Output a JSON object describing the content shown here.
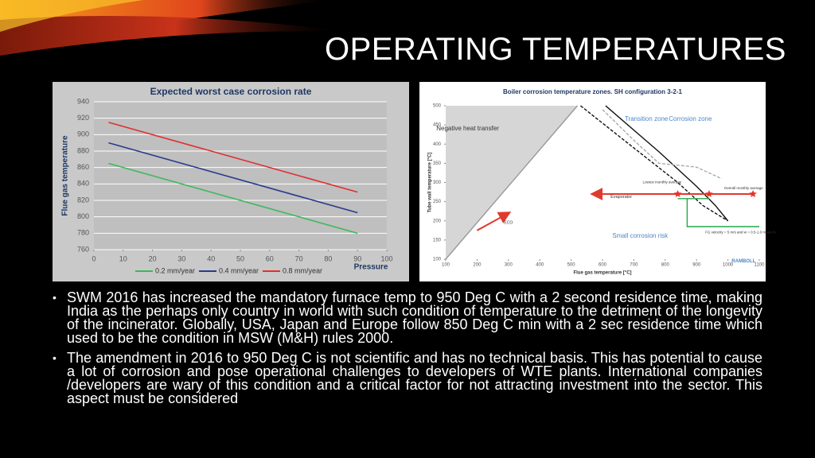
{
  "slide": {
    "title": "OPERATING TEMPERATURES",
    "bullets": [
      "SWM 2016 has increased the mandatory furnace temp to 950 Deg C with a 2 second residence time, making India as the perhaps only country in world with such condition of temperature to the detriment of the longevity of the incinerator. Globally, USA, Japan and Europe follow 850 Deg C min with a 2 sec residence time which used to be the condition in MSW (M&H) rules 2000.",
      "The amendment in 2016 to 950 Deg C is not scientific and has no technical basis. This has potential to cause a lot of corrosion and pose operational challenges to developers of WTE plants. International companies /developers are wary of this condition and a critical factor for not attracting investment into the sector. This aspect must be considered"
    ]
  },
  "chart_data": [
    {
      "type": "line",
      "title": "Expected worst case corrosion rate",
      "x_label": "Pressure",
      "y_label": "Flue gas temperature",
      "x": [
        5,
        90
      ],
      "xlim": [
        0,
        100
      ],
      "xticks": [
        0,
        10,
        20,
        30,
        40,
        50,
        60,
        70,
        80,
        90,
        100
      ],
      "ylim": [
        760,
        940
      ],
      "yticks": [
        760,
        780,
        800,
        820,
        840,
        860,
        880,
        900,
        920,
        940
      ],
      "grid": true,
      "legend": "bottom",
      "series": [
        {
          "name": "0.2 mm/year",
          "color": "#3cb95a",
          "values": [
            865,
            780
          ]
        },
        {
          "name": "0.4 mm/year",
          "color": "#2a3a8c",
          "values": [
            890,
            805
          ]
        },
        {
          "name": "0.8 mm/year",
          "color": "#e03030",
          "values": [
            915,
            830
          ]
        }
      ]
    },
    {
      "type": "line",
      "title": "Boiler corrosion temperature zones. SH configuration 3-2-1",
      "x_label": "Flue gas temperature [°C]",
      "y_label": "Tube wall temperature [°C]",
      "xlim": [
        100,
        1100
      ],
      "xticks": [
        100,
        200,
        300,
        400,
        500,
        600,
        700,
        800,
        900,
        1000,
        1100
      ],
      "ylim": [
        100,
        500
      ],
      "yticks": [
        100,
        150,
        200,
        250,
        300,
        350,
        400,
        450,
        500
      ],
      "annotations": [
        "Negative heat transfer",
        "Transition zone",
        "Corrosion zone",
        "Small corrosion risk",
        "Evaporator",
        "ECO",
        "Lowest monthly average",
        "Overall monthly average",
        "FG velocity = 5 m/s and w = 0.5-1.0 mass-%",
        "RAMBOLL"
      ],
      "series": [
        {
          "color": "#999999",
          "style": "solid",
          "x": [
            100,
            520
          ],
          "values": [
            100,
            500
          ]
        },
        {
          "color": "#111111",
          "style": "dashed",
          "x": [
            530,
            700,
            840,
            920,
            1000
          ],
          "values": [
            500,
            390,
            300,
            240,
            200
          ]
        },
        {
          "color": "#111111",
          "style": "solid",
          "x": [
            610,
            780,
            900,
            960,
            1000
          ],
          "values": [
            500,
            380,
            290,
            240,
            200
          ]
        },
        {
          "color": "#aaaaaa",
          "style": "dashed",
          "x": [
            600,
            700,
            780,
            900,
            980
          ],
          "values": [
            490,
            410,
            350,
            340,
            310
          ]
        },
        {
          "color": "#e03a2e",
          "style": "arrow",
          "x": [
            1080,
            570
          ],
          "values": [
            270,
            270
          ]
        },
        {
          "color": "#e03a2e",
          "style": "arrow",
          "x": [
            200,
            300
          ],
          "values": [
            175,
            220
          ]
        },
        {
          "color": "#22a84a",
          "style": "solid",
          "x": [
            840,
            940
          ],
          "values": [
            258,
            258
          ]
        },
        {
          "color": "#22a84a",
          "style": "solid",
          "x": [
            870,
            870,
            1100
          ],
          "values": [
            258,
            185,
            185
          ]
        }
      ],
      "points": {
        "color": "#e8312a",
        "x": [
          840,
          940,
          1080
        ],
        "values": [
          270,
          270,
          270
        ]
      }
    }
  ]
}
